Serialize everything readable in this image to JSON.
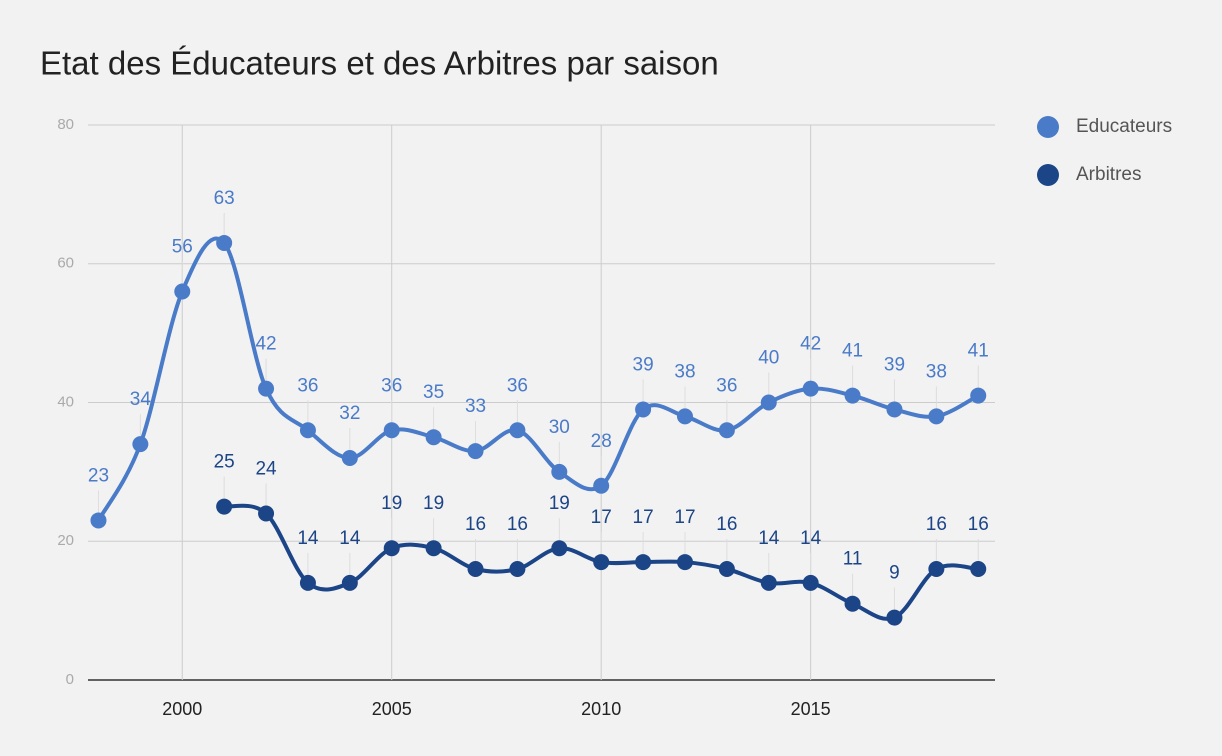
{
  "chart_data": {
    "type": "line",
    "title": "Etat des Éducateurs et des Arbitres par saison",
    "x": [
      1998,
      1999,
      2000,
      2001,
      2002,
      2003,
      2004,
      2005,
      2006,
      2007,
      2008,
      2009,
      2010,
      2011,
      2012,
      2013,
      2014,
      2015,
      2016,
      2017,
      2018,
      2019
    ],
    "series": [
      {
        "name": "Educateurs",
        "color": "#4a7bc8",
        "values": [
          23,
          34,
          56,
          63,
          42,
          36,
          32,
          36,
          35,
          33,
          36,
          30,
          28,
          39,
          38,
          36,
          40,
          42,
          41,
          39,
          38,
          41
        ]
      },
      {
        "name": "Arbitres",
        "color": "#1c4587",
        "values": [
          null,
          null,
          null,
          25,
          24,
          14,
          14,
          19,
          19,
          16,
          16,
          19,
          17,
          17,
          17,
          16,
          14,
          14,
          11,
          9,
          16,
          16
        ]
      }
    ],
    "xlim": [
      1997.75,
      2019.4
    ],
    "xticks": [
      2000,
      2005,
      2010,
      2015
    ],
    "ylim": [
      0,
      80
    ],
    "yticks": [
      0,
      20,
      40,
      60,
      80
    ],
    "grid": true,
    "legend": "right"
  }
}
